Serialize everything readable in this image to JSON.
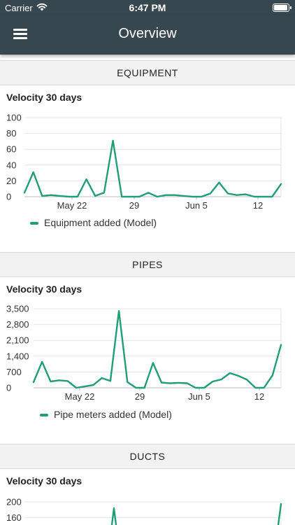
{
  "status_bar": {
    "carrier": "Carrier",
    "time": "6:47 PM"
  },
  "app_bar": {
    "title": "Overview",
    "menu_icon": "hamburger-menu-icon"
  },
  "accent_color": "#1f9e77",
  "sections": [
    {
      "header": "EQUIPMENT",
      "chart_title": "Velocity 30 days",
      "legend": "Equipment added (Model)"
    },
    {
      "header": "PIPES",
      "chart_title": "Velocity 30 days",
      "legend": "Pipe meters added (Model)"
    },
    {
      "header": "DUCTS",
      "chart_title": "Velocity 30 days",
      "legend": ""
    }
  ],
  "chart_data": [
    {
      "type": "line",
      "x_tick_labels": [
        "May 22",
        "29",
        "Jun 5",
        "12"
      ],
      "ylim": [
        0,
        100
      ],
      "y_ticks": [
        0,
        20,
        40,
        60,
        80,
        100
      ],
      "y_tick_labels": [
        "0",
        "20",
        "40",
        "60",
        "80",
        "100"
      ],
      "grid": true,
      "legend_position": "bottom-left",
      "series": [
        {
          "name": "Equipment added (Model)",
          "values": [
            5,
            31,
            1,
            2,
            1,
            0,
            0,
            22,
            1,
            5,
            71,
            0,
            0,
            0,
            5,
            0,
            2,
            2,
            1,
            0,
            0,
            4,
            18,
            4,
            2,
            3,
            0,
            0,
            0,
            16
          ]
        }
      ]
    },
    {
      "type": "line",
      "x_tick_labels": [
        "May 22",
        "29",
        "Jun 5",
        "12"
      ],
      "ylim": [
        0,
        3500
      ],
      "y_ticks": [
        0,
        700,
        1400,
        2100,
        2800,
        3500
      ],
      "y_tick_labels": [
        "0",
        "700",
        "1,400",
        "2,100",
        "2,800",
        "3,500"
      ],
      "grid": true,
      "legend_position": "bottom-left",
      "series": [
        {
          "name": "Pipe meters added (Model)",
          "values": [
            250,
            1150,
            280,
            330,
            300,
            0,
            60,
            120,
            430,
            300,
            3400,
            250,
            0,
            0,
            1100,
            230,
            200,
            220,
            200,
            0,
            0,
            280,
            370,
            650,
            530,
            360,
            0,
            0,
            550,
            1900
          ]
        }
      ]
    },
    {
      "type": "line",
      "x_tick_labels": [],
      "ylim": [
        0,
        200
      ],
      "y_ticks": [
        160,
        200
      ],
      "y_tick_labels": [
        "160",
        "200"
      ],
      "grid": true,
      "series": [
        {
          "values": []
        }
      ]
    }
  ]
}
